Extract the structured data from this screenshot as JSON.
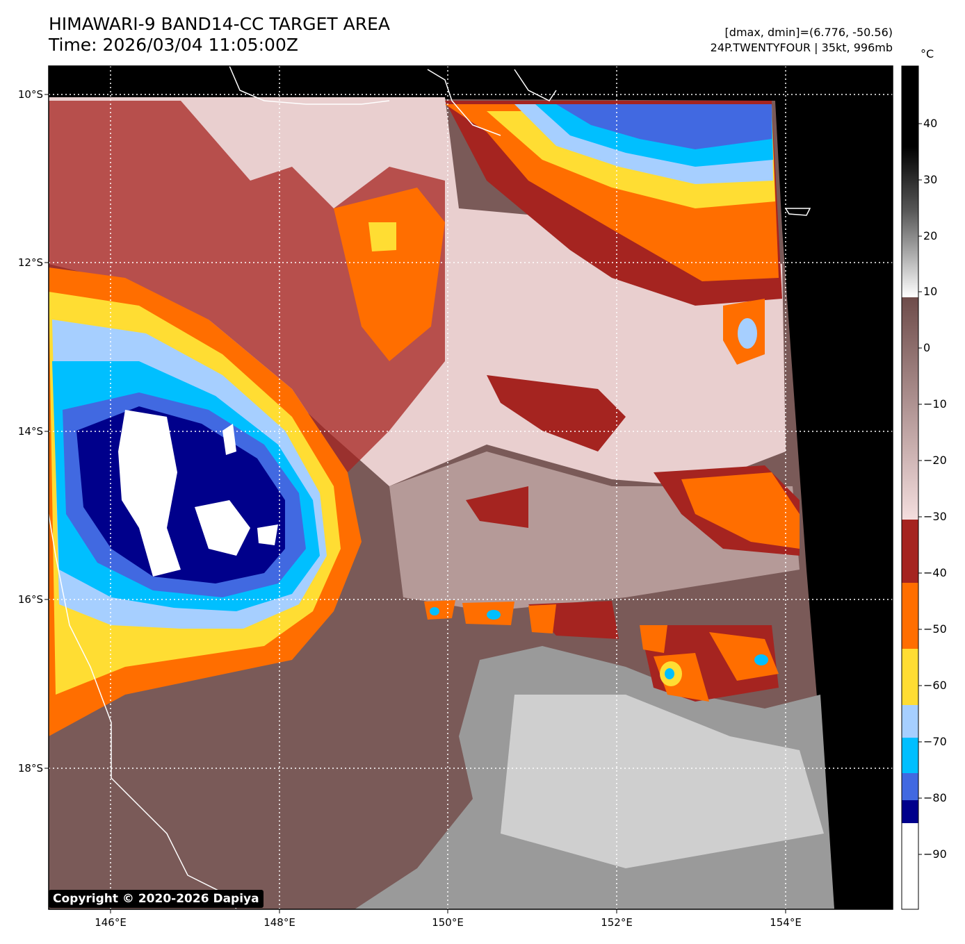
{
  "header": {
    "title_line1": "HIMAWARI-9 BAND14-CC TARGET AREA",
    "title_line2": "Time: 2026/03/04 11:05:00Z",
    "range_text": "[dmax, dmin]=(6.776, -50.56)",
    "storm_text": "24P.TWENTYFOUR | 35kt, 996mb"
  },
  "map": {
    "lat_labels": [
      "10°S",
      "12°S",
      "14°S",
      "16°S",
      "18°S"
    ],
    "lon_labels": [
      "146°E",
      "148°E",
      "150°E",
      "152°E",
      "154°E"
    ],
    "copyright": "Copyright © 2020-2026 Dapiya"
  },
  "colorbar": {
    "unit": "°C",
    "ticks": [
      "40",
      "30",
      "20",
      "10",
      "0",
      "−10",
      "−20",
      "−30",
      "−40",
      "−50",
      "−60",
      "−70",
      "−80",
      "−90"
    ],
    "colors": {
      "black": "#000000",
      "white": "#ffffff",
      "dark_red": "#a52420",
      "orange": "#ff6e00",
      "yellow": "#ffdd33",
      "light_blue": "#a6cfff",
      "cyan": "#00bfff",
      "royal_blue": "#4169e1",
      "navy": "#00008b",
      "gray_brown": "#7a5a58",
      "pink": "#f0d8d8"
    }
  }
}
